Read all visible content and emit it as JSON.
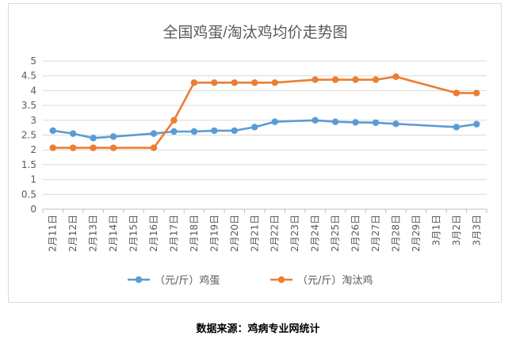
{
  "chart_data": {
    "type": "line",
    "title": "全国鸡蛋/淘汰鸡均价走势图",
    "categories": [
      "2月11日",
      "2月12日",
      "2月13日",
      "2月14日",
      "2月15日",
      "2月16日",
      "2月17日",
      "2月18日",
      "2月19日",
      "2月20日",
      "2月21日",
      "2月22日",
      "2月23日",
      "2月24日",
      "2月25日",
      "2月26日",
      "2月27日",
      "2月28日",
      "2月29日",
      "3月1日",
      "3月2日",
      "3月3日"
    ],
    "y_ticks": [
      "0",
      "0.5",
      "1",
      "1.5",
      "2",
      "2.5",
      "3",
      "3.5",
      "4",
      "4.5",
      "5"
    ],
    "ylim": [
      0,
      5
    ],
    "grid": true,
    "legend_position": "bottom",
    "series": [
      {
        "name": "（元/斤）鸡蛋",
        "color": "#5b9bd5",
        "values": [
          2.65,
          2.55,
          2.4,
          2.45,
          null,
          2.55,
          2.62,
          2.62,
          2.65,
          2.65,
          2.77,
          2.95,
          null,
          3.0,
          2.95,
          2.93,
          2.92,
          2.88,
          null,
          null,
          2.77,
          2.87
        ]
      },
      {
        "name": "（元/斤）淘汰鸡",
        "color": "#ed7d31",
        "values": [
          2.07,
          2.07,
          2.07,
          2.07,
          null,
          2.07,
          3.0,
          4.27,
          4.27,
          4.27,
          4.27,
          4.27,
          null,
          4.37,
          4.37,
          4.37,
          4.37,
          4.47,
          null,
          null,
          3.92,
          3.92
        ]
      }
    ]
  },
  "source_note": "数据来源：鸡病专业网统计"
}
